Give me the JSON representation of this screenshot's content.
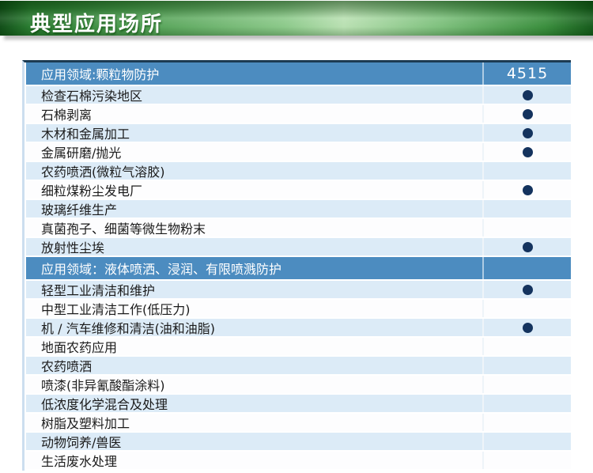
{
  "banner": {
    "title": "典型应用场所"
  },
  "table": {
    "product_model": "4515",
    "sections": [
      {
        "header": "应用领域:颗粒物防护",
        "rows": [
          {
            "label": "检查石棉污染地区",
            "dot": true
          },
          {
            "label": "石棉剥离",
            "dot": true
          },
          {
            "label": "木材和金属加工",
            "dot": true
          },
          {
            "label": "金属研磨/抛光",
            "dot": true
          },
          {
            "label": "农药喷洒(微粒气溶胶)",
            "dot": false
          },
          {
            "label": "细粒煤粉尘发电厂",
            "dot": true
          },
          {
            "label": "玻璃纤维生产",
            "dot": false
          },
          {
            "label": "真菌孢子、细菌等微生物粉末",
            "dot": false
          },
          {
            "label": "放射性尘埃",
            "dot": true
          }
        ]
      },
      {
        "header": "应用领域：液体喷洒、浸润、有限喷溅防护",
        "rows": [
          {
            "label": "轻型工业清洁和维护",
            "dot": true
          },
          {
            "label": "中型工业清洁工作(低压力)",
            "dot": false
          },
          {
            "label": "机 / 汽车维修和清洁(油和油脂)",
            "dot": true
          },
          {
            "label": "地面农药应用",
            "dot": false
          },
          {
            "label": "农药喷洒",
            "dot": false
          },
          {
            "label": "喷漆(非异氰酸酯涂料)",
            "dot": false
          },
          {
            "label": "低浓度化学混合及处理",
            "dot": false
          },
          {
            "label": "树脂及塑料加工",
            "dot": false
          },
          {
            "label": "动物饲养/兽医",
            "dot": false
          },
          {
            "label": "生活废水处理",
            "dot": false
          }
        ]
      }
    ]
  },
  "colors": {
    "banner_green_dark": "#1a5c1d",
    "banner_green_light": "#b9e0b2",
    "section_header_blue": "#4c8cc0",
    "row_alt_blue": "#dcebf7",
    "dot_navy": "#14335e",
    "table_top_border": "#1c3b52"
  }
}
